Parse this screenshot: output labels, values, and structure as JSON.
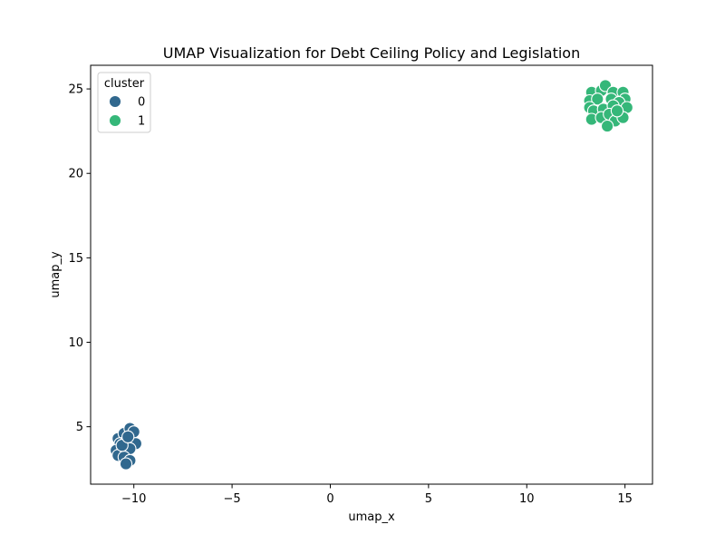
{
  "chart_data": {
    "type": "scatter",
    "title": "UMAP Visualization for Debt Ceiling Policy and Legislation",
    "xlabel": "umap_x",
    "ylabel": "umap_y",
    "xlim": [
      -12.2,
      16.4
    ],
    "ylim": [
      1.6,
      26.4
    ],
    "xticks": [
      -10,
      -5,
      0,
      5,
      10,
      15
    ],
    "yticks": [
      5,
      10,
      15,
      20,
      25
    ],
    "grid": false,
    "legend": {
      "title": "cluster",
      "placement": "top-left",
      "entries": [
        "0",
        "1"
      ]
    },
    "series": [
      {
        "name": "0",
        "color": "#31688e",
        "points": [
          [
            -10.8,
            4.3
          ],
          [
            -10.5,
            4.6
          ],
          [
            -10.2,
            4.9
          ],
          [
            -10.0,
            4.7
          ],
          [
            -10.7,
            4.0
          ],
          [
            -10.4,
            4.1
          ],
          [
            -10.1,
            4.0
          ],
          [
            -9.9,
            4.0
          ],
          [
            -10.9,
            3.6
          ],
          [
            -10.6,
            3.5
          ],
          [
            -10.3,
            3.5
          ],
          [
            -10.2,
            3.7
          ],
          [
            -10.8,
            3.3
          ],
          [
            -10.5,
            3.2
          ],
          [
            -10.2,
            3.0
          ],
          [
            -10.4,
            2.8
          ],
          [
            -10.6,
            3.9
          ],
          [
            -10.3,
            4.4
          ]
        ]
      },
      {
        "name": "1",
        "color": "#35b779",
        "points": [
          [
            13.3,
            24.8
          ],
          [
            13.8,
            24.9
          ],
          [
            14.0,
            25.2
          ],
          [
            14.4,
            24.8
          ],
          [
            14.9,
            24.8
          ],
          [
            15.0,
            24.4
          ],
          [
            13.2,
            24.3
          ],
          [
            13.6,
            24.4
          ],
          [
            14.3,
            24.4
          ],
          [
            14.7,
            24.2
          ],
          [
            13.2,
            23.9
          ],
          [
            13.4,
            23.7
          ],
          [
            13.9,
            23.8
          ],
          [
            14.4,
            24.0
          ],
          [
            15.1,
            23.9
          ],
          [
            13.3,
            23.2
          ],
          [
            13.8,
            23.3
          ],
          [
            14.2,
            23.5
          ],
          [
            14.5,
            23.1
          ],
          [
            14.9,
            23.3
          ],
          [
            14.1,
            22.8
          ],
          [
            14.6,
            23.7
          ]
        ]
      }
    ]
  }
}
